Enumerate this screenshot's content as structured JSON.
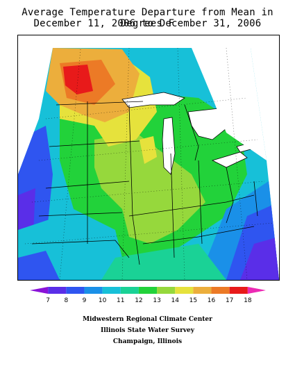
{
  "title": {
    "line1": "Average Temperature Departure from Mean in Degrees F",
    "line2": "December 11, 2006 to December 31, 2006"
  },
  "legend": {
    "ticks": [
      "7",
      "8",
      "9",
      "10",
      "11",
      "12",
      "13",
      "14",
      "15",
      "16",
      "17",
      "18"
    ],
    "colors": [
      "#8a12d8",
      "#5a2ee8",
      "#2f55f0",
      "#1a90e8",
      "#17c0d8",
      "#1ad296",
      "#22d23a",
      "#96d83c",
      "#e6e23c",
      "#ecae3c",
      "#ec7a26",
      "#e81a1a",
      "#ec2ab4"
    ]
  },
  "credits": {
    "line1": "Midwestern Regional Climate Center",
    "line2": "Illinois State Water Survey",
    "line3": "Champaign, Illinois"
  }
}
